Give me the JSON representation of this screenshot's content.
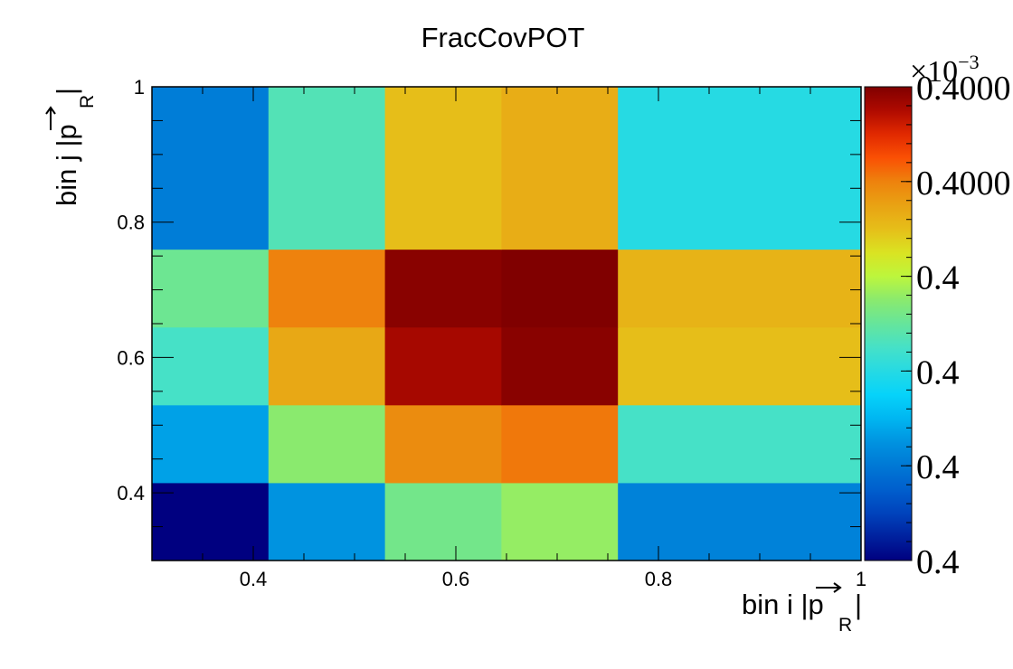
{
  "chart_data": {
    "type": "heatmap",
    "title": "FracCovPOT",
    "xlabel": "bin i |p_R|",
    "ylabel": "bin j |p_R|",
    "axis_label_text": {
      "x_prefix": "bin i |",
      "y_prefix": "bin j |",
      "p": "p",
      "sub": "R",
      "suffix": "|"
    },
    "x_edges": [
      0.3,
      0.415,
      0.53,
      0.645,
      0.76,
      1.0
    ],
    "y_edges": [
      0.3,
      0.415,
      0.53,
      0.645,
      0.76,
      1.0
    ],
    "xlim": [
      0.3,
      1.0
    ],
    "ylim": [
      0.3,
      1.0
    ],
    "x_ticks": [
      0.4,
      0.6,
      0.8,
      1.0
    ],
    "x_tick_labels": [
      "0.4",
      "0.6",
      "0.8",
      "1"
    ],
    "y_ticks": [
      0.4,
      0.6,
      0.8,
      1.0
    ],
    "y_tick_labels": [
      "0.4",
      "0.6",
      "0.8",
      "1"
    ],
    "z_levels": [
      [
        0.0,
        0.25,
        0.52,
        0.56,
        0.22
      ],
      [
        0.27,
        0.55,
        0.79,
        0.81,
        0.45
      ],
      [
        0.45,
        0.74,
        0.96,
        0.99,
        0.7
      ],
      [
        0.51,
        0.8,
        0.99,
        1.0,
        0.72
      ],
      [
        0.21,
        0.47,
        0.7,
        0.73,
        0.4
      ]
    ],
    "colorbar": {
      "exponent_label": "×10",
      "exponent": "−3",
      "tick_labels": [
        "0.4000",
        "0.4000",
        "0.4",
        "0.4",
        "0.4",
        "0.4"
      ],
      "tick_levels": [
        1.0,
        0.8,
        0.6,
        0.4,
        0.2,
        0.0
      ]
    },
    "colormap": "jet",
    "grid": false
  }
}
